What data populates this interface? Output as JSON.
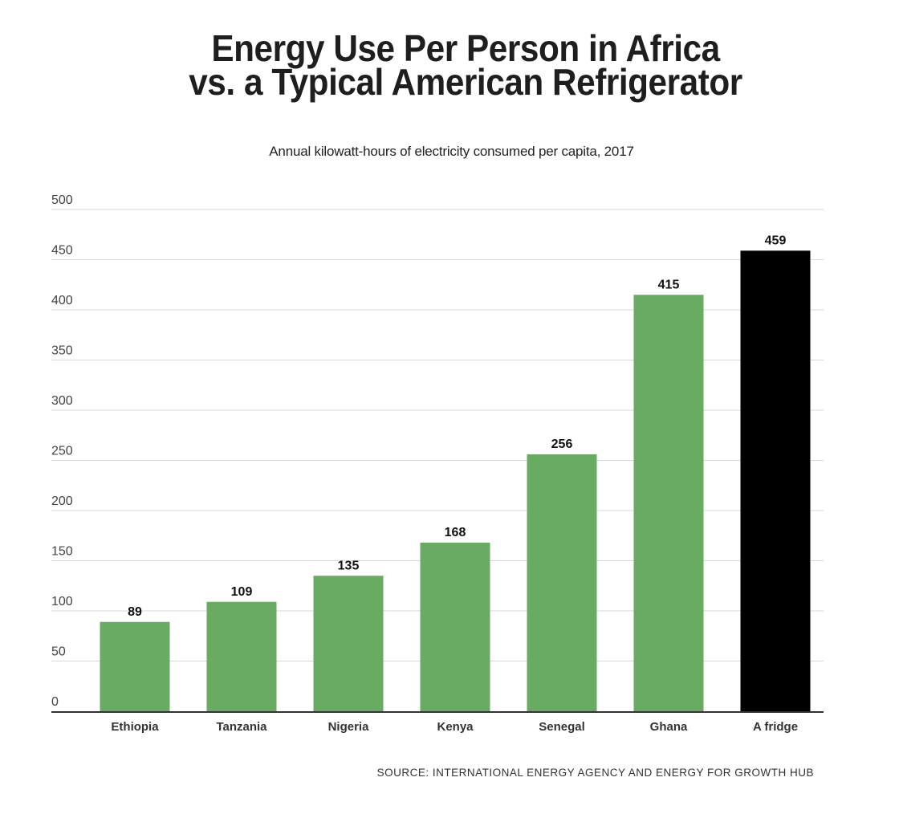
{
  "header": {
    "title_line1": "Energy Use Per Person in Africa",
    "title_line2": "vs. a Typical American Refrigerator",
    "subtitle": "Annual kilowatt-hours of electricity consumed per capita, 2017"
  },
  "footer": {
    "source": "SOURCE: INTERNATIONAL ENERGY AGENCY AND ENERGY FOR GROWTH HUB"
  },
  "colors": {
    "country_bar": "#69ab62",
    "fridge_bar": "#000000",
    "gridline": "#d9d9d9",
    "axis": "#333333"
  },
  "chart_data": {
    "type": "bar",
    "title": "Energy Use Per Person in Africa vs. a Typical American Refrigerator",
    "subtitle": "Annual kilowatt-hours of electricity consumed per capita, 2017",
    "categories": [
      "Ethiopia",
      "Tanzania",
      "Nigeria",
      "Kenya",
      "Senegal",
      "Ghana",
      "A fridge"
    ],
    "values": [
      89,
      109,
      135,
      168,
      256,
      415,
      459
    ],
    "value_labels": [
      "89",
      "109",
      "135",
      "168",
      "256",
      "415",
      "459"
    ],
    "highlight": [
      false,
      false,
      false,
      false,
      false,
      false,
      true
    ],
    "ylim": [
      0,
      500
    ],
    "yticks": [
      0,
      50,
      100,
      150,
      200,
      250,
      300,
      350,
      400,
      450,
      500
    ],
    "ytick_labels": [
      "0",
      "50",
      "100",
      "150",
      "200",
      "250",
      "300",
      "350",
      "400",
      "450",
      "500"
    ],
    "xlabel": "",
    "ylabel": "",
    "grid": true,
    "legend": "none"
  }
}
